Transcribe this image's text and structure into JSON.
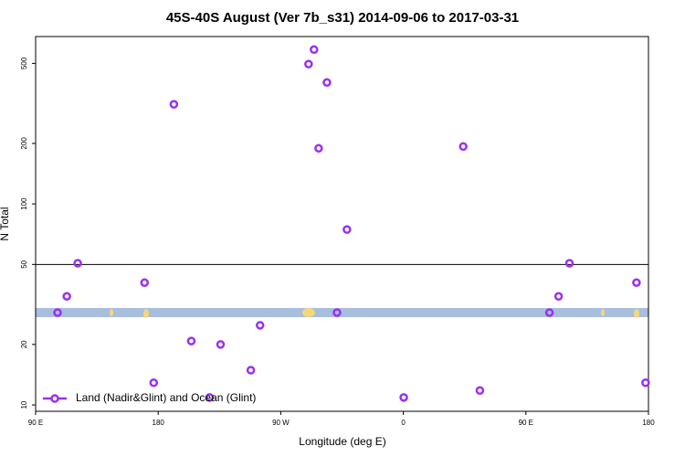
{
  "chart_data": {
    "type": "scatter",
    "title": "45S-40S August (Ver 7b_s31)   2014-09-06 to 2017-03-31",
    "x_label": "Longitude (deg E)",
    "y_label": "N Total",
    "log_y": true,
    "hline": 50,
    "xlim": [
      90,
      540
    ],
    "xticks": [
      {
        "value": 90,
        "label": "90 E"
      },
      180,
      {
        "value": 270,
        "label": "90 W"
      },
      {
        "value": 360,
        "label": "0"
      },
      {
        "value": 450,
        "label": "90 E"
      },
      {
        "value": 540,
        "label": "180"
      }
    ],
    "ylim": [
      9.3,
      680
    ],
    "yticks": [
      10,
      20,
      50,
      100,
      200,
      500
    ],
    "legend": "bottom-left",
    "series": [
      {
        "name": "Land (Nadir&Glint) and Ocean (Glint)",
        "color": "#9b30ef",
        "x": [
          106.1,
          112.9,
          120.9,
          170,
          176.7,
          191.5,
          204.3,
          217.8,
          225.8,
          248,
          254.8,
          290.4,
          294.4,
          297.8,
          303.9,
          311.3,
          318.6,
          360.3,
          404,
          416.2,
          467.3,
          474,
          482,
          531.2,
          537.9
        ],
        "values": [
          28.8,
          34.7,
          50.7,
          40.6,
          12.9,
          313,
          20.8,
          10.9,
          20,
          14.9,
          24.9,
          496,
          586,
          189,
          402,
          28.8,
          74.6,
          10.9,
          193,
          11.8,
          28.8,
          34.7,
          50.7,
          40.6,
          12.9
        ]
      }
    ]
  }
}
